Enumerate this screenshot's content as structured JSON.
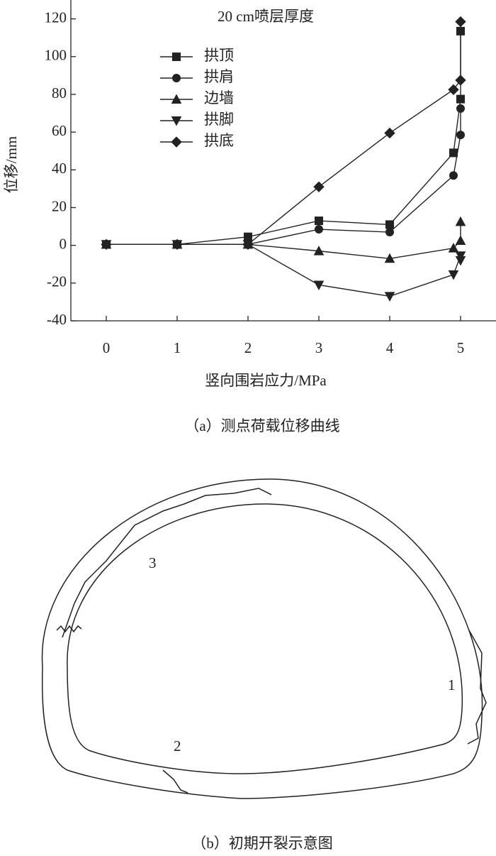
{
  "chart_data": {
    "type": "line",
    "title": "20 cm喷层厚度",
    "x_label": "竖向围岩应力/MPa",
    "y_label": "位移/mm",
    "caption": "（a）测点荷载位移曲线",
    "x": [
      0,
      1,
      2,
      3,
      4,
      4.9,
      5,
      5
    ],
    "xlim": [
      -0.5,
      5.5
    ],
    "xticks": [
      0,
      1,
      2,
      3,
      4,
      5
    ],
    "ylim": [
      -40,
      130
    ],
    "yticks": [
      -40,
      -20,
      0,
      20,
      40,
      60,
      80,
      100,
      120
    ],
    "series": [
      {
        "name": "拱顶",
        "color": "#222222",
        "marker": "square",
        "values": [
          0.5,
          0.5,
          4.5,
          13,
          11,
          49,
          77.5,
          113.5
        ]
      },
      {
        "name": "拱肩",
        "color": "#222222",
        "marker": "circle",
        "values": [
          0.5,
          0.5,
          0.5,
          8.5,
          7,
          37,
          58.5,
          72.5
        ]
      },
      {
        "name": "边墙",
        "color": "#222222",
        "marker": "triangle-up",
        "values": [
          0.5,
          0.5,
          0.5,
          -3,
          -7,
          -1.5,
          2.5,
          12.5
        ]
      },
      {
        "name": "拱脚",
        "color": "#222222",
        "marker": "triangle-down",
        "values": [
          0.5,
          0.5,
          0.5,
          -21,
          -27,
          -15.5,
          -5.5,
          -8
        ]
      },
      {
        "name": "拱底",
        "color": "#222222",
        "marker": "diamond",
        "values": [
          0.5,
          0.5,
          0.5,
          31,
          59.5,
          82.5,
          87.5,
          118.5
        ]
      }
    ]
  },
  "diagram": {
    "caption": "（b）初期开裂示意图",
    "labels": [
      "1",
      "2",
      "3"
    ]
  }
}
